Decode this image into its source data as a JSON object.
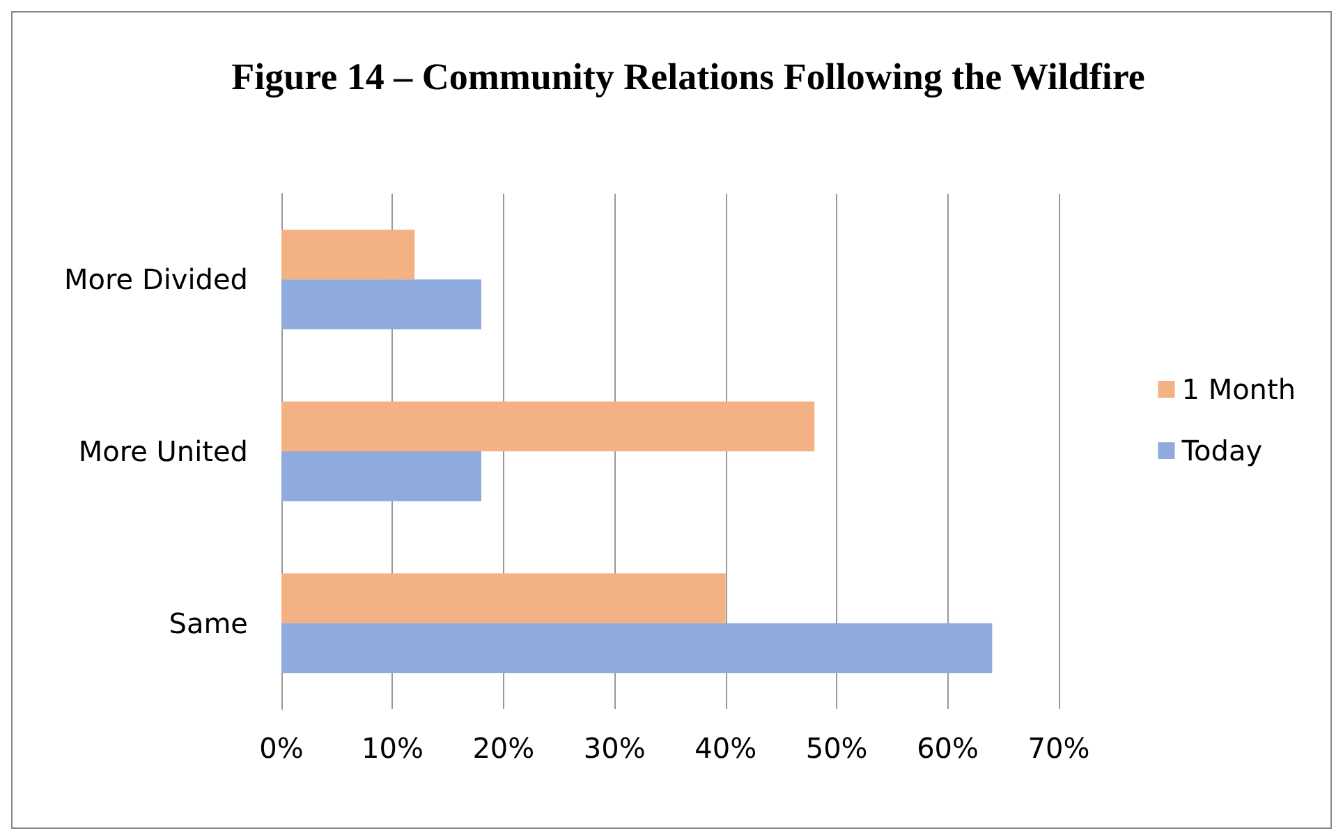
{
  "chart_data": {
    "type": "bar",
    "orientation": "horizontal",
    "title": "Figure 14 – Community Relations Following the Wildfire",
    "categories": [
      "More Divided",
      "More United",
      "Same"
    ],
    "series": [
      {
        "name": "1 Month",
        "color": "#f4b183",
        "values": [
          12,
          48,
          40
        ]
      },
      {
        "name": "Today",
        "color": "#8faadc",
        "values": [
          18,
          18,
          64
        ]
      }
    ],
    "xlim": [
      0,
      70
    ],
    "xticks": [
      {
        "value": 0,
        "label": "0%"
      },
      {
        "value": 10,
        "label": "10%"
      },
      {
        "value": 20,
        "label": "20%"
      },
      {
        "value": 30,
        "label": "30%"
      },
      {
        "value": 40,
        "label": "40%"
      },
      {
        "value": 50,
        "label": "50%"
      },
      {
        "value": 60,
        "label": "60%"
      },
      {
        "value": 70,
        "label": "70%"
      }
    ],
    "grid": "x",
    "legend": "right"
  }
}
